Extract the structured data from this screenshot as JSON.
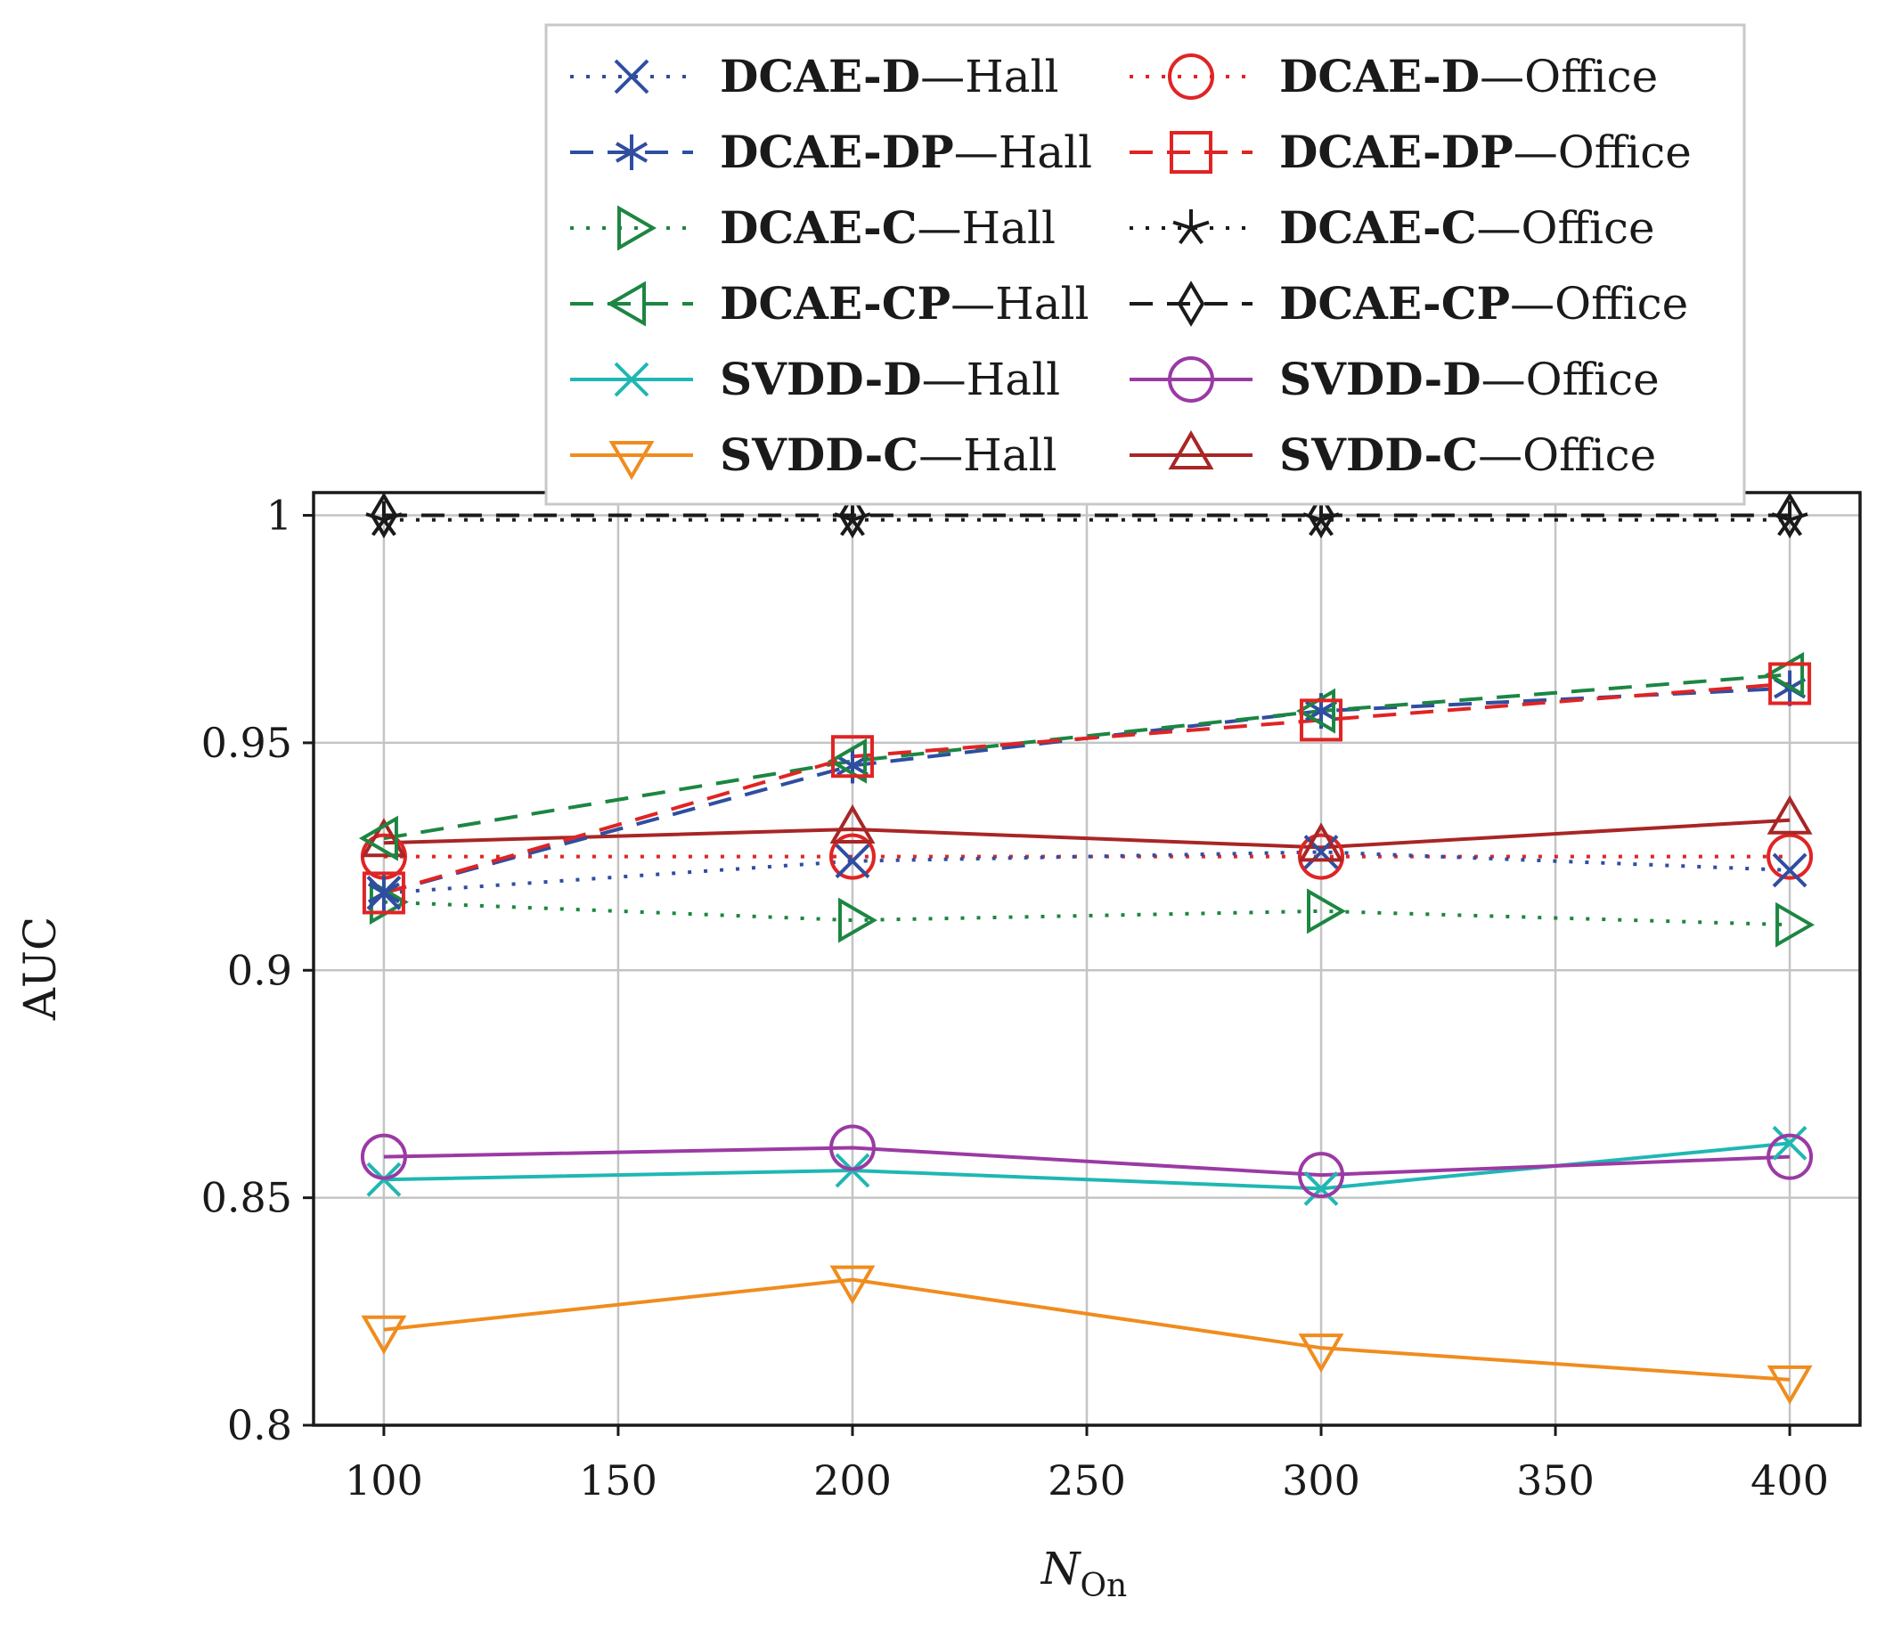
{
  "chart_data": {
    "type": "line",
    "title": "",
    "xlabel": "N",
    "xlabel_sub": "On",
    "ylabel": "AUC",
    "x": [
      100,
      200,
      300,
      400
    ],
    "xlim": [
      85,
      415
    ],
    "ylim": [
      0.8,
      1.005
    ],
    "xticks": [
      100,
      150,
      200,
      250,
      300,
      350,
      400
    ],
    "xtick_labels": [
      "100",
      "150",
      "200",
      "250",
      "300",
      "350",
      "400"
    ],
    "yticks": [
      0.8,
      0.85,
      0.9,
      0.95,
      1.0
    ],
    "ytick_labels": [
      "0.8",
      "0.85",
      "0.9",
      "0.95",
      "1"
    ],
    "grid": true,
    "legend_position": "top",
    "series": [
      {
        "name_bold": "DCAE-D",
        "name_rest": "—Hall",
        "color": "#2f4ea0",
        "dash": "dotted",
        "marker": "x",
        "values": [
          0.917,
          0.924,
          0.926,
          0.922
        ]
      },
      {
        "name_bold": "DCAE-DP",
        "name_rest": "—Hall",
        "color": "#2f4ea0",
        "dash": "dashed",
        "marker": "asterisk",
        "values": [
          0.917,
          0.945,
          0.957,
          0.962
        ]
      },
      {
        "name_bold": "DCAE-C",
        "name_rest": "—Hall",
        "color": "#1c8642",
        "dash": "dotted",
        "marker": "triangle-right",
        "values": [
          0.915,
          0.911,
          0.913,
          0.91
        ]
      },
      {
        "name_bold": "DCAE-CP",
        "name_rest": "—Hall",
        "color": "#1c8642",
        "dash": "dashed",
        "marker": "triangle-left",
        "values": [
          0.929,
          0.946,
          0.957,
          0.965
        ]
      },
      {
        "name_bold": "SVDD-D",
        "name_rest": "—Hall",
        "color": "#1fb7b4",
        "dash": "solid",
        "marker": "x",
        "values": [
          0.854,
          0.856,
          0.852,
          0.862
        ]
      },
      {
        "name_bold": "SVDD-C",
        "name_rest": "—Hall",
        "color": "#f08c1e",
        "dash": "solid",
        "marker": "triangle-down",
        "values": [
          0.821,
          0.832,
          0.817,
          0.81
        ]
      },
      {
        "name_bold": "DCAE-D",
        "name_rest": "—Office",
        "color": "#e02424",
        "dash": "dotted",
        "marker": "circle",
        "values": [
          0.925,
          0.925,
          0.925,
          0.925
        ]
      },
      {
        "name_bold": "DCAE-DP",
        "name_rest": "—Office",
        "color": "#e02424",
        "dash": "dashed",
        "marker": "square",
        "values": [
          0.917,
          0.947,
          0.955,
          0.963
        ]
      },
      {
        "name_bold": "DCAE-C",
        "name_rest": "—Office",
        "color": "#1a1a1a",
        "dash": "dotted",
        "marker": "star",
        "values": [
          0.999,
          0.999,
          0.999,
          0.999
        ]
      },
      {
        "name_bold": "DCAE-CP",
        "name_rest": "—Office",
        "color": "#1a1a1a",
        "dash": "dashed",
        "marker": "diamond",
        "values": [
          1.0,
          1.0,
          1.0,
          1.0
        ]
      },
      {
        "name_bold": "SVDD-D",
        "name_rest": "—Office",
        "color": "#9b3aa4",
        "dash": "solid",
        "marker": "circle",
        "values": [
          0.859,
          0.861,
          0.855,
          0.859
        ]
      },
      {
        "name_bold": "SVDD-C",
        "name_rest": "—Office",
        "color": "#a82626",
        "dash": "solid",
        "marker": "triangle-up",
        "values": [
          0.928,
          0.931,
          0.927,
          0.933
        ]
      }
    ]
  }
}
